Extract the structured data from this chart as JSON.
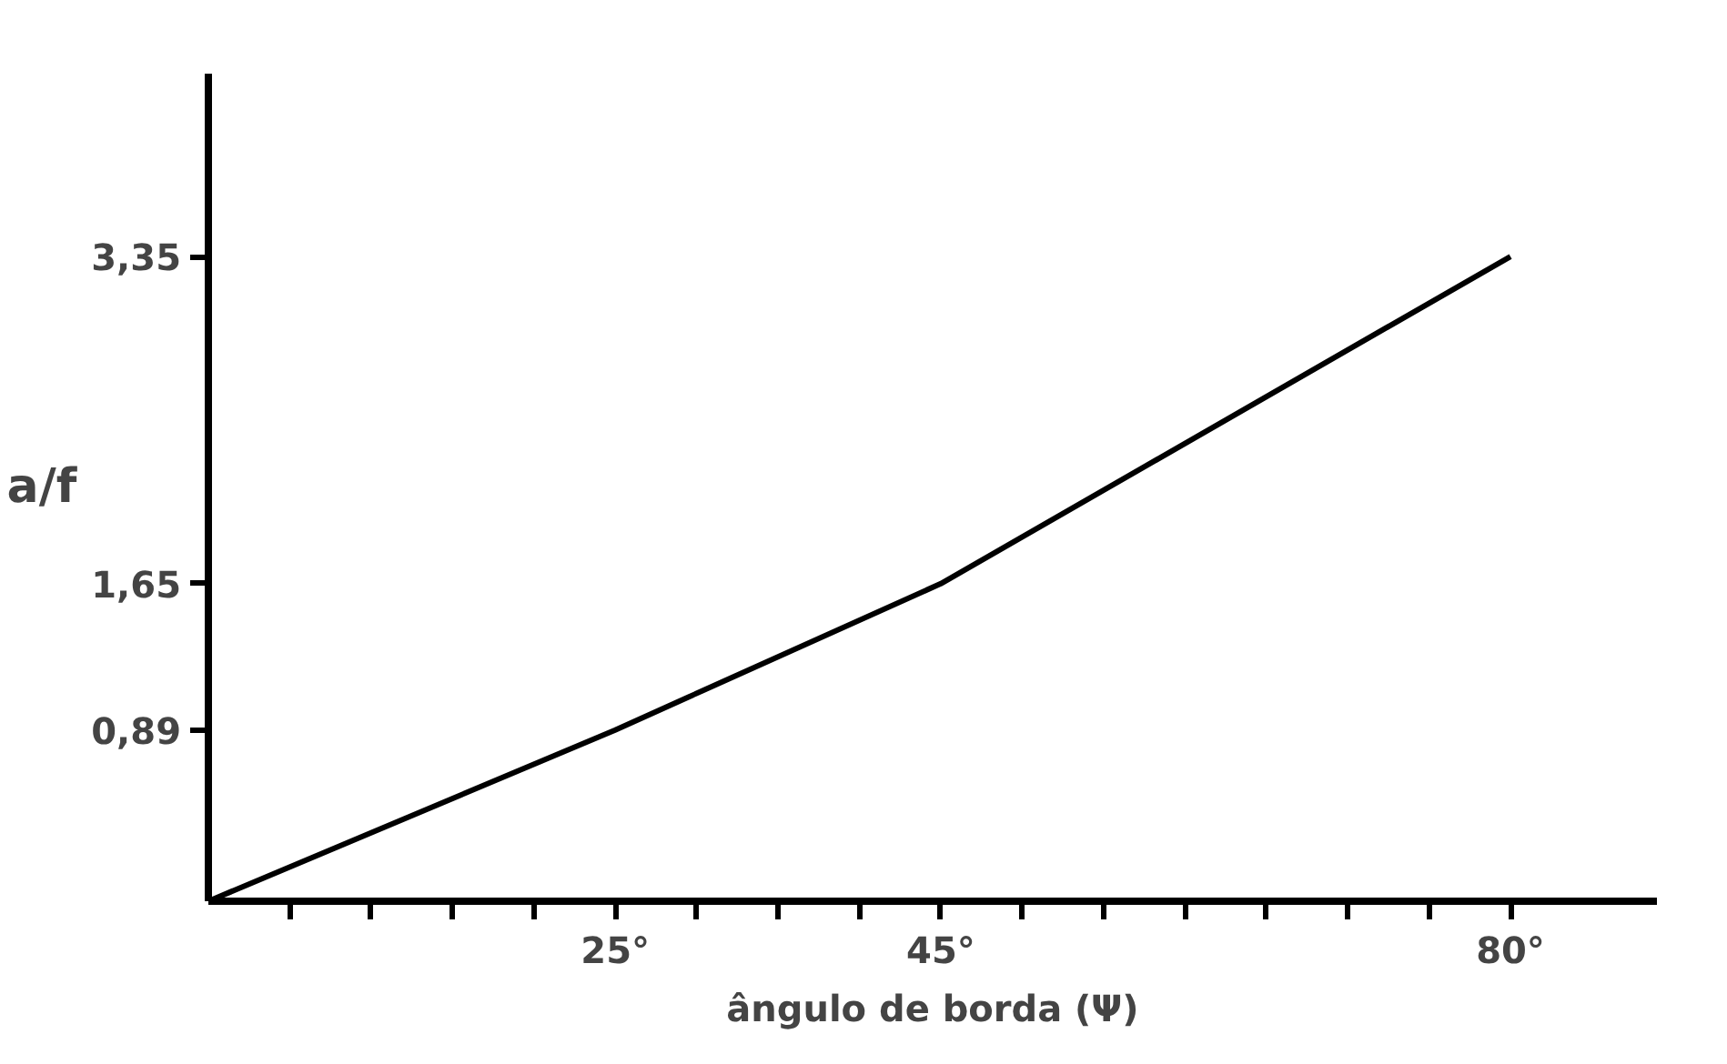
{
  "chart_data": {
    "type": "line",
    "xlabel": "ângulo de borda (Ψ)",
    "ylabel": "a/f",
    "x": [
      0,
      25,
      45,
      80
    ],
    "series": [
      {
        "color": "#000000",
        "values": [
          0,
          0.89,
          1.65,
          3.35
        ]
      }
    ],
    "xlim": [
      0,
      89
    ],
    "ylim": [
      0,
      4.3
    ],
    "xticks": [
      {
        "value": 5,
        "label": null
      },
      {
        "value": 10,
        "label": null
      },
      {
        "value": 15,
        "label": null
      },
      {
        "value": 20,
        "label": null
      },
      {
        "value": 25,
        "label": "25°"
      },
      {
        "value": 30,
        "label": null
      },
      {
        "value": 35,
        "label": null
      },
      {
        "value": 40,
        "label": null
      },
      {
        "value": 45,
        "label": "45°"
      },
      {
        "value": 50,
        "label": null
      },
      {
        "value": 55,
        "label": null
      },
      {
        "value": 60,
        "label": null
      },
      {
        "value": 65,
        "label": null
      },
      {
        "value": 70,
        "label": null
      },
      {
        "value": 75,
        "label": null
      },
      {
        "value": 80,
        "label": "80°"
      }
    ],
    "yticks": [
      {
        "value": 0.89,
        "label": "0,89"
      },
      {
        "value": 1.65,
        "label": "1,65"
      },
      {
        "value": 3.35,
        "label": "3,35"
      }
    ],
    "grid": false,
    "marker": "none",
    "line_style": "solid"
  }
}
